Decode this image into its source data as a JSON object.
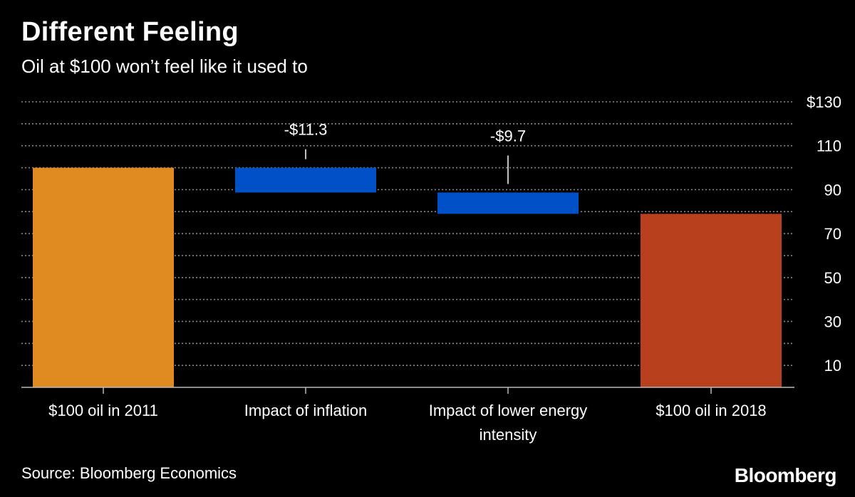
{
  "header": {
    "title": "Different Feeling",
    "subtitle": "Oil at $100 won’t feel like it used to"
  },
  "footer": {
    "source": "Source: Bloomberg Economics",
    "brand": "Bloomberg"
  },
  "colors": {
    "background": "#000000",
    "text": "#ffffff",
    "gridline": "#888888",
    "bar_2011": "#E08A22",
    "bar_decrease": "#0050C8",
    "bar_2018": "#B8401C"
  },
  "chart_data": {
    "type": "bar",
    "subtype": "waterfall",
    "categories": [
      [
        "$100 oil in 2011"
      ],
      [
        "Impact of inflation"
      ],
      [
        "Impact of lower energy",
        "intensity"
      ],
      [
        "$100 oil in 2018"
      ]
    ],
    "bars": [
      {
        "kind": "total",
        "start": 0,
        "end": 100,
        "color_key": "bar_2011",
        "label": ""
      },
      {
        "kind": "decrease",
        "start": 100,
        "end": 88.7,
        "color_key": "bar_decrease",
        "label": "-$11.3"
      },
      {
        "kind": "decrease",
        "start": 88.7,
        "end": 79,
        "color_key": "bar_decrease",
        "label": "-$9.7"
      },
      {
        "kind": "total",
        "start": 0,
        "end": 79,
        "color_key": "bar_2018",
        "label": ""
      }
    ],
    "ylim": [
      0,
      130
    ],
    "yticks": [
      10,
      30,
      50,
      70,
      90,
      110,
      130
    ],
    "ytick_labels": [
      "10",
      "30",
      "50",
      "70",
      "90",
      "110",
      "$130"
    ],
    "grid": true,
    "grid_step": 10,
    "grid_style": "dotted",
    "yaxis_position": "right"
  }
}
